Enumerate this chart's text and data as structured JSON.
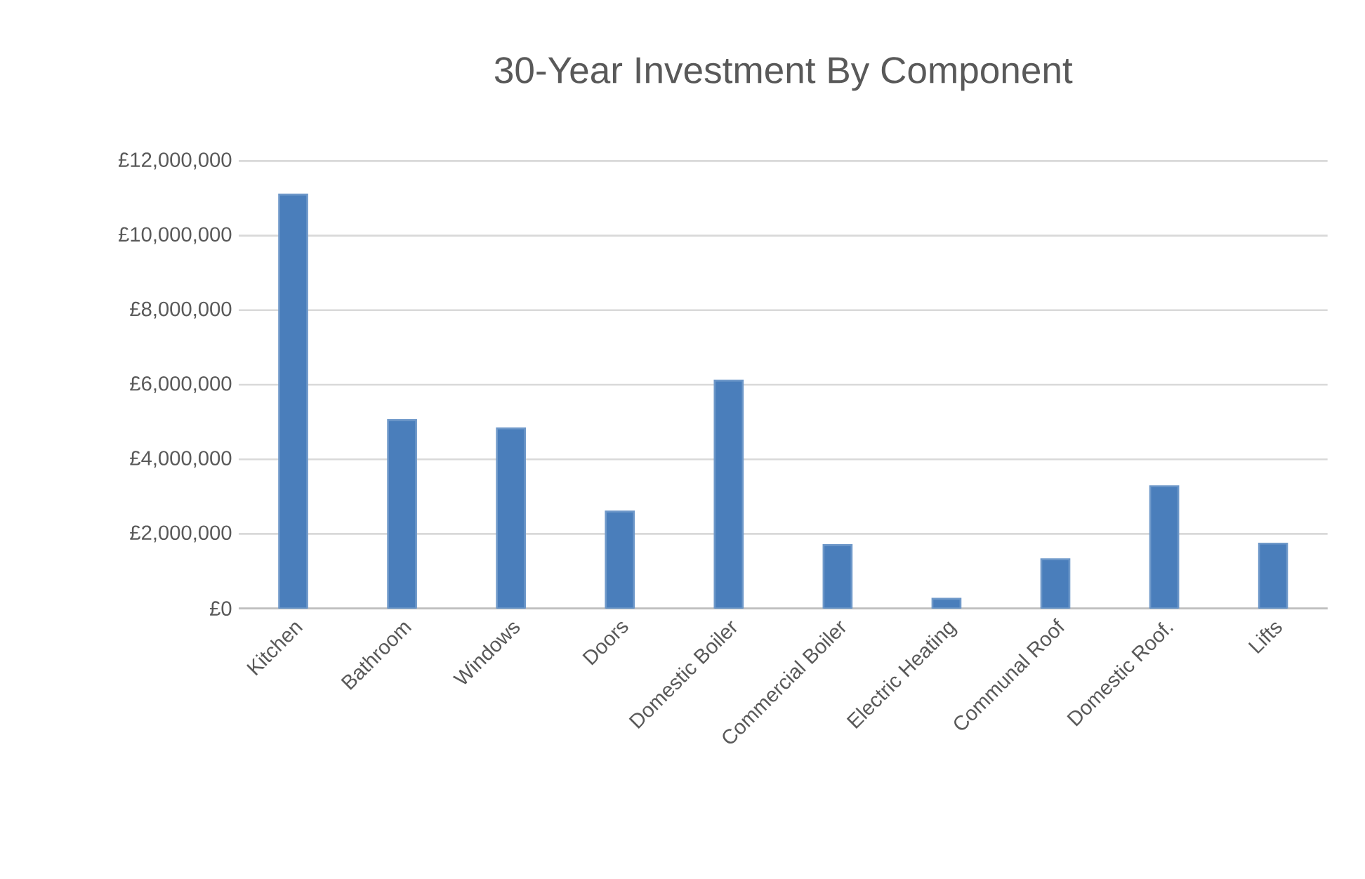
{
  "chart_data": {
    "type": "bar",
    "title": "30-Year Investment By Component",
    "categories": [
      "Kitchen",
      "Bathroom",
      "Windows",
      "Doors",
      "Domestic Boiler",
      "Commercial Boiler",
      "Electric Heating",
      "Communal Roof",
      "Domestic Roof.",
      "Lifts"
    ],
    "values": [
      11100000,
      5050000,
      4830000,
      2600000,
      6110000,
      1700000,
      260000,
      1320000,
      3280000,
      1740000
    ],
    "color": "#4a7ebb",
    "ylim": [
      0,
      12000000
    ],
    "yticks": [
      {
        "value": 0,
        "label": "£0"
      },
      {
        "value": 2000000,
        "label": "£2,000,000"
      },
      {
        "value": 4000000,
        "label": "£4,000,000"
      },
      {
        "value": 6000000,
        "label": "£6,000,000"
      },
      {
        "value": 8000000,
        "label": "£8,000,000"
      },
      {
        "value": 10000000,
        "label": "£10,000,000"
      },
      {
        "value": 12000000,
        "label": "£12,000,000"
      }
    ],
    "grid": "y"
  }
}
